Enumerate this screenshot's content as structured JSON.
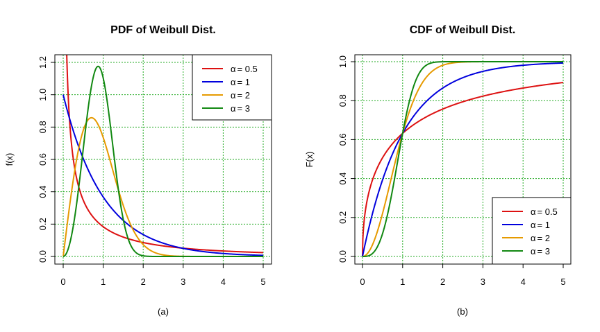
{
  "chart_data": [
    {
      "id": "pdf",
      "type": "line",
      "title": "PDF of Weibull Dist.",
      "xlabel": "",
      "ylabel": "f(x)",
      "sublabel": "(a)",
      "xlim": [
        0,
        5
      ],
      "ylim": [
        0,
        1.2
      ],
      "xticks": [
        0,
        1,
        2,
        3,
        4,
        5
      ],
      "yticks": [
        0,
        0.2,
        0.4,
        0.6,
        0.8,
        1.0,
        1.2
      ],
      "xtick_labels": [
        "0",
        "1",
        "2",
        "3",
        "4",
        "5"
      ],
      "ytick_labels": [
        "0.0",
        "0.2",
        "0.4",
        "0.6",
        "0.8",
        "1.0",
        "1.2"
      ],
      "grid": true,
      "function": "pdf",
      "legend_position": "top-right",
      "series": [
        {
          "label_alpha": "α",
          "label_eq": "= 0.5",
          "shape": 0.5,
          "color": "#dd1111"
        },
        {
          "label_alpha": "α",
          "label_eq": "= 1",
          "shape": 1,
          "color": "#0000dd"
        },
        {
          "label_alpha": "α",
          "label_eq": "= 2",
          "shape": 2,
          "color": "#e69a00"
        },
        {
          "label_alpha": "α",
          "label_eq": "= 3",
          "shape": 3,
          "color": "#118811"
        }
      ]
    },
    {
      "id": "cdf",
      "type": "line",
      "title": "CDF of Weibull Dist.",
      "xlabel": "",
      "ylabel": "F(x)",
      "sublabel": "(b)",
      "xlim": [
        0,
        5
      ],
      "ylim": [
        0,
        1.0
      ],
      "xticks": [
        0,
        1,
        2,
        3,
        4,
        5
      ],
      "yticks": [
        0,
        0.2,
        0.4,
        0.6,
        0.8,
        1.0
      ],
      "xtick_labels": [
        "0",
        "1",
        "2",
        "3",
        "4",
        "5"
      ],
      "ytick_labels": [
        "0.0",
        "0.2",
        "0.4",
        "0.6",
        "0.8",
        "1.0"
      ],
      "grid": true,
      "function": "cdf",
      "legend_position": "bottom-right",
      "series": [
        {
          "label_alpha": "α",
          "label_eq": "= 0.5",
          "shape": 0.5,
          "color": "#dd1111"
        },
        {
          "label_alpha": "α",
          "label_eq": "= 1",
          "shape": 1,
          "color": "#0000dd"
        },
        {
          "label_alpha": "α",
          "label_eq": "= 2",
          "shape": 2,
          "color": "#e69a00"
        },
        {
          "label_alpha": "α",
          "label_eq": "= 3",
          "shape": 3,
          "color": "#118811"
        }
      ]
    }
  ]
}
